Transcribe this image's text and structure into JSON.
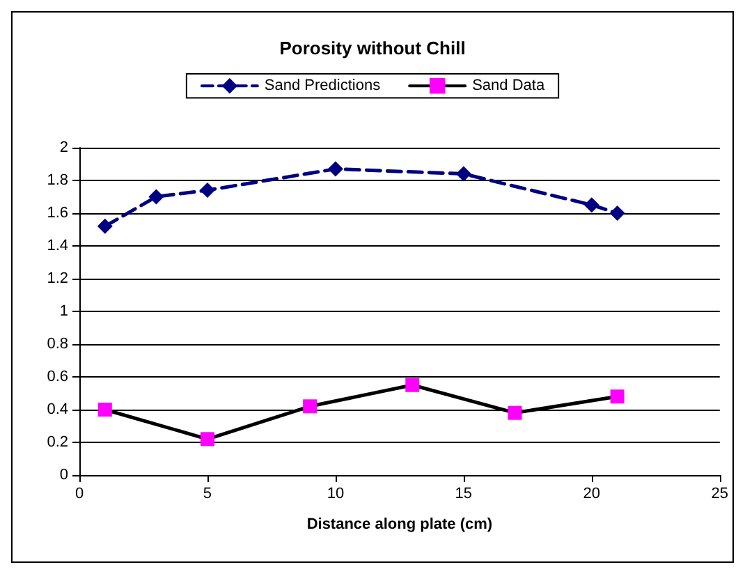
{
  "chart_data": {
    "type": "line",
    "title": "Porosity without Chill",
    "xlabel": "Distance along plate (cm)",
    "xlim": [
      0,
      25
    ],
    "xticks": [
      0,
      5,
      10,
      15,
      20,
      25
    ],
    "ylim": [
      0,
      2
    ],
    "yticks": [
      0,
      0.2,
      0.4,
      0.6,
      0.8,
      1,
      1.2,
      1.4,
      1.6,
      1.8,
      2
    ],
    "grid": "y",
    "legend": "top",
    "series": [
      {
        "name": "Sand Predictions",
        "color": "#000080",
        "marker": "diamond",
        "line_style": "dashed",
        "x": [
          1,
          3,
          5,
          10,
          15,
          20,
          21
        ],
        "values": [
          1.52,
          1.7,
          1.74,
          1.87,
          1.84,
          1.65,
          1.6
        ]
      },
      {
        "name": "Sand Data",
        "color": "#000000",
        "colors": [
          "#ff00ff",
          "#ff00ff",
          "#ff00ff",
          "#ff00ff",
          "#ff00ff",
          "#ff00ff"
        ],
        "marker": "square",
        "line_style": "solid",
        "x": [
          1,
          5,
          9,
          13,
          17,
          21
        ],
        "values": [
          0.4,
          0.22,
          0.42,
          0.55,
          0.38,
          0.48
        ]
      }
    ]
  }
}
